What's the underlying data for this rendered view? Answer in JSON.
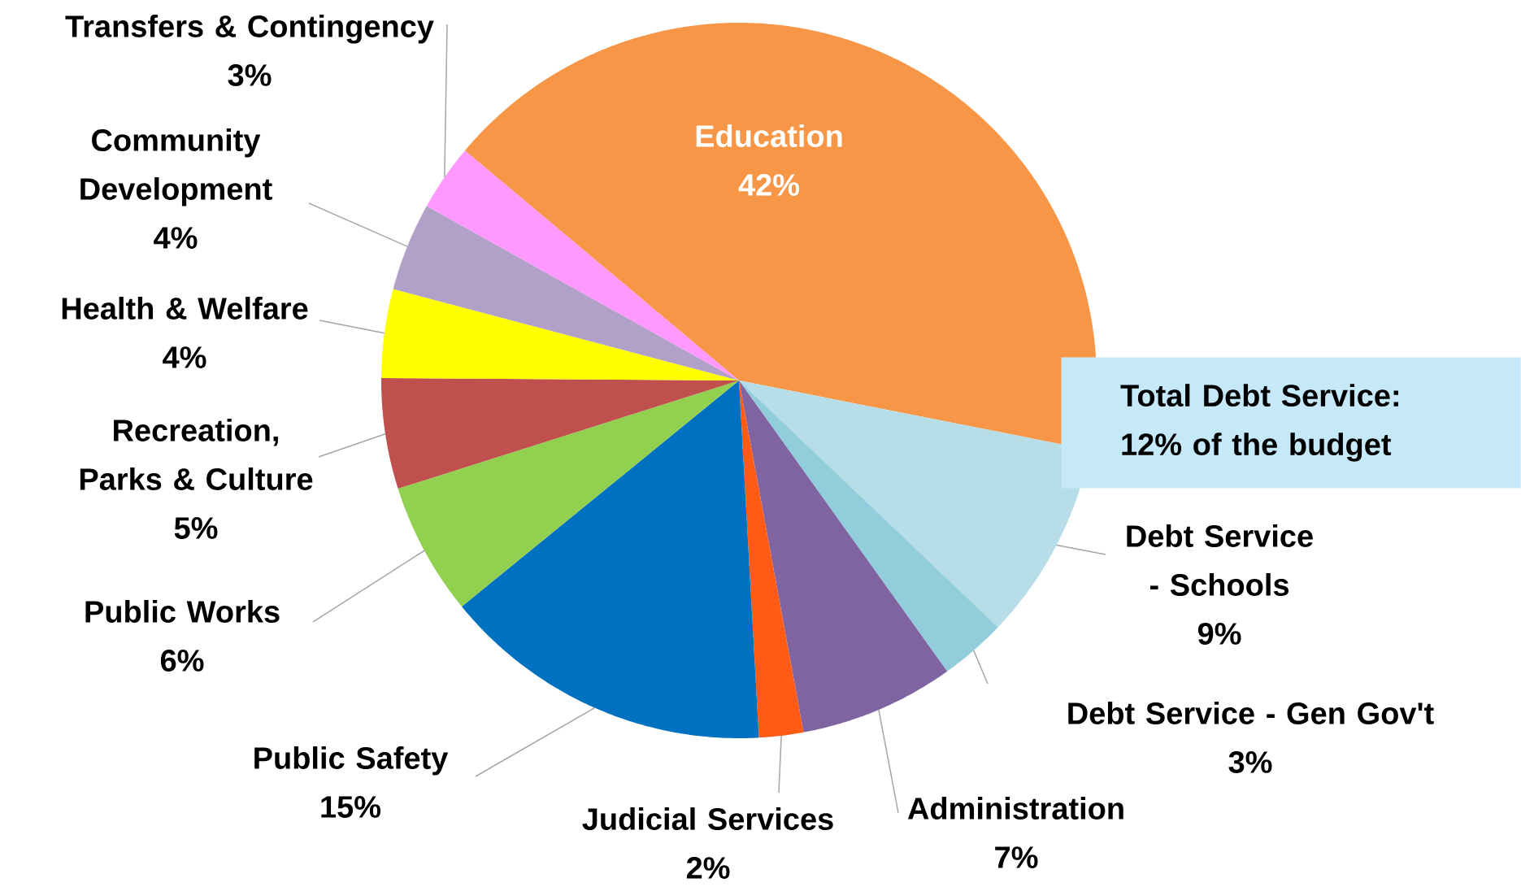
{
  "chart_data": {
    "type": "pie",
    "categories": [
      "Education",
      "Debt Service - Schools",
      "Debt Service - Gen Gov't",
      "Administration",
      "Judicial Services",
      "Public Safety",
      "Public Works",
      "Recreation, Parks & Culture",
      "Health & Welfare",
      "Community Development",
      "Transfers & Contingency"
    ],
    "values": [
      42,
      9,
      3,
      7,
      2,
      15,
      6,
      5,
      4,
      4,
      3
    ],
    "colors": [
      "#f79646",
      "#b7dde8",
      "#92cddc",
      "#8064a2",
      "#ff5b14",
      "#0070c0",
      "#92d050",
      "#c0504d",
      "#ffff00",
      "#b1a0c7",
      "#ff99ff"
    ],
    "value_labels": [
      "42%",
      "9%",
      "3%",
      "7%",
      "2%",
      "15%",
      "6%",
      "5%",
      "4%",
      "4%",
      "3%"
    ],
    "annotations": [
      "Total Debt Service: 12% of the budget"
    ]
  }
}
